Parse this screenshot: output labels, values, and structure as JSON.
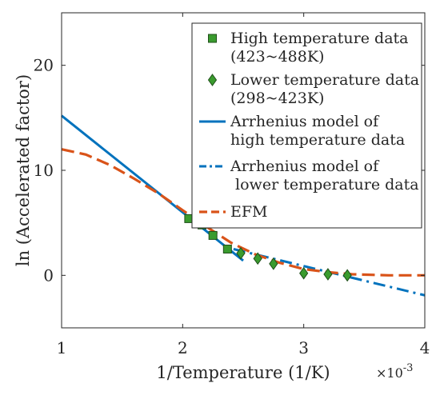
{
  "chart_data": {
    "type": "scatter",
    "xlabel": "1/Temperature (1/K)",
    "ylabel": "ln (Accelerated factor)",
    "x_exponent_base": "×10",
    "x_exponent_power": "-3",
    "xlim": [
      1,
      4
    ],
    "ylim": [
      -5,
      25
    ],
    "xticks": [
      1,
      2,
      3,
      4
    ],
    "yticks": [
      0,
      10,
      20
    ],
    "xtick_labels": [
      "1",
      "2",
      "3",
      "4"
    ],
    "ytick_labels": [
      "0",
      "10",
      "20"
    ],
    "grid": false,
    "legend_position": "top-right",
    "series": [
      {
        "name": "High temperature data\n(423~488K)",
        "kind": "scatter",
        "marker": "square",
        "color": "#3a9b2e",
        "edge": "#1f4f1a",
        "points": [
          [
            2.05,
            5.4
          ],
          [
            2.16,
            4.8
          ],
          [
            2.25,
            3.8
          ],
          [
            2.37,
            2.5
          ]
        ]
      },
      {
        "name": "Lower temperature data\n(298~423K)",
        "kind": "scatter",
        "marker": "diamond",
        "color": "#3a9b2e",
        "edge": "#1f4f1a",
        "points": [
          [
            2.48,
            2.1
          ],
          [
            2.62,
            1.6
          ],
          [
            2.75,
            1.1
          ],
          [
            3.0,
            0.2
          ],
          [
            3.2,
            0.1
          ],
          [
            3.36,
            0.0
          ]
        ]
      },
      {
        "name": "Arrhenius model of\nhigh temperature data",
        "kind": "line",
        "style": "solid",
        "color": "#0072bd",
        "points": [
          [
            1.0,
            15.2
          ],
          [
            2.5,
            1.4
          ]
        ]
      },
      {
        "name": "Arrhenius model of\n lower temperature data",
        "kind": "line",
        "style": "dashdot",
        "color": "#0072bd",
        "points": [
          [
            2.42,
            2.5
          ],
          [
            4.0,
            -1.9
          ]
        ]
      },
      {
        "name": "EFM",
        "kind": "line",
        "style": "dashed",
        "color": "#d95319",
        "points": [
          [
            1.0,
            12.0
          ],
          [
            1.2,
            11.5
          ],
          [
            1.4,
            10.5
          ],
          [
            1.6,
            9.2
          ],
          [
            1.8,
            7.8
          ],
          [
            2.0,
            6.2
          ],
          [
            2.2,
            4.6
          ],
          [
            2.4,
            3.1
          ],
          [
            2.6,
            2.0
          ],
          [
            2.8,
            1.2
          ],
          [
            3.0,
            0.6
          ],
          [
            3.2,
            0.3
          ],
          [
            3.4,
            0.1
          ],
          [
            3.7,
            0.0
          ],
          [
            4.0,
            0.0
          ]
        ]
      }
    ]
  }
}
